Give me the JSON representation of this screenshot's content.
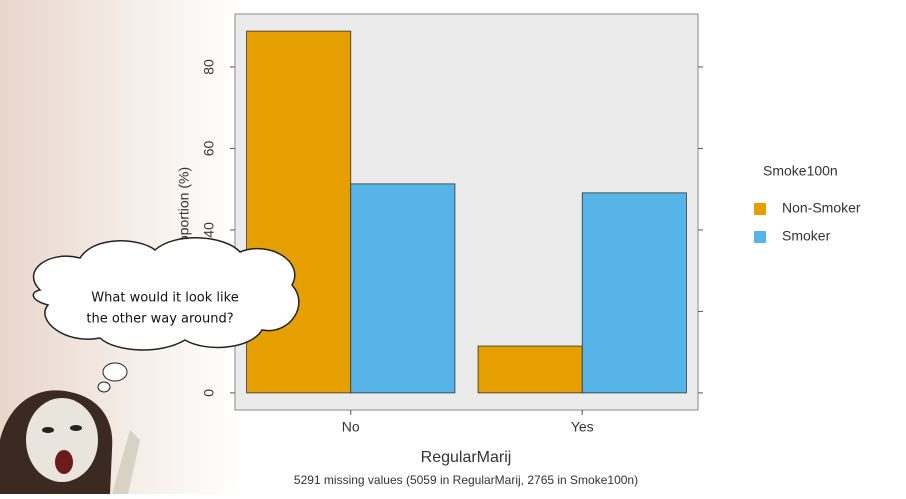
{
  "chart_data": {
    "type": "bar",
    "x_label": "RegularMarij",
    "y_label": "Proportion (%)",
    "caption": "5291 missing values (5059 in RegularMarij, 2765 in Smoke100n)",
    "legend_title": "Smoke100n",
    "categories": [
      "No",
      "Yes"
    ],
    "series": [
      {
        "name": "Non-Smoker",
        "color": "#E69F00",
        "values": [
          88.8,
          11.5
        ]
      },
      {
        "name": "Smoker",
        "color": "#56B4E9",
        "values": [
          51.3,
          49.1
        ]
      }
    ],
    "ylim": [
      -4.2,
      93
    ],
    "yticks": [
      0,
      20,
      40,
      60,
      80
    ],
    "grid": false
  },
  "callout": {
    "lines": [
      "What would it look like",
      "the other way around?"
    ]
  }
}
